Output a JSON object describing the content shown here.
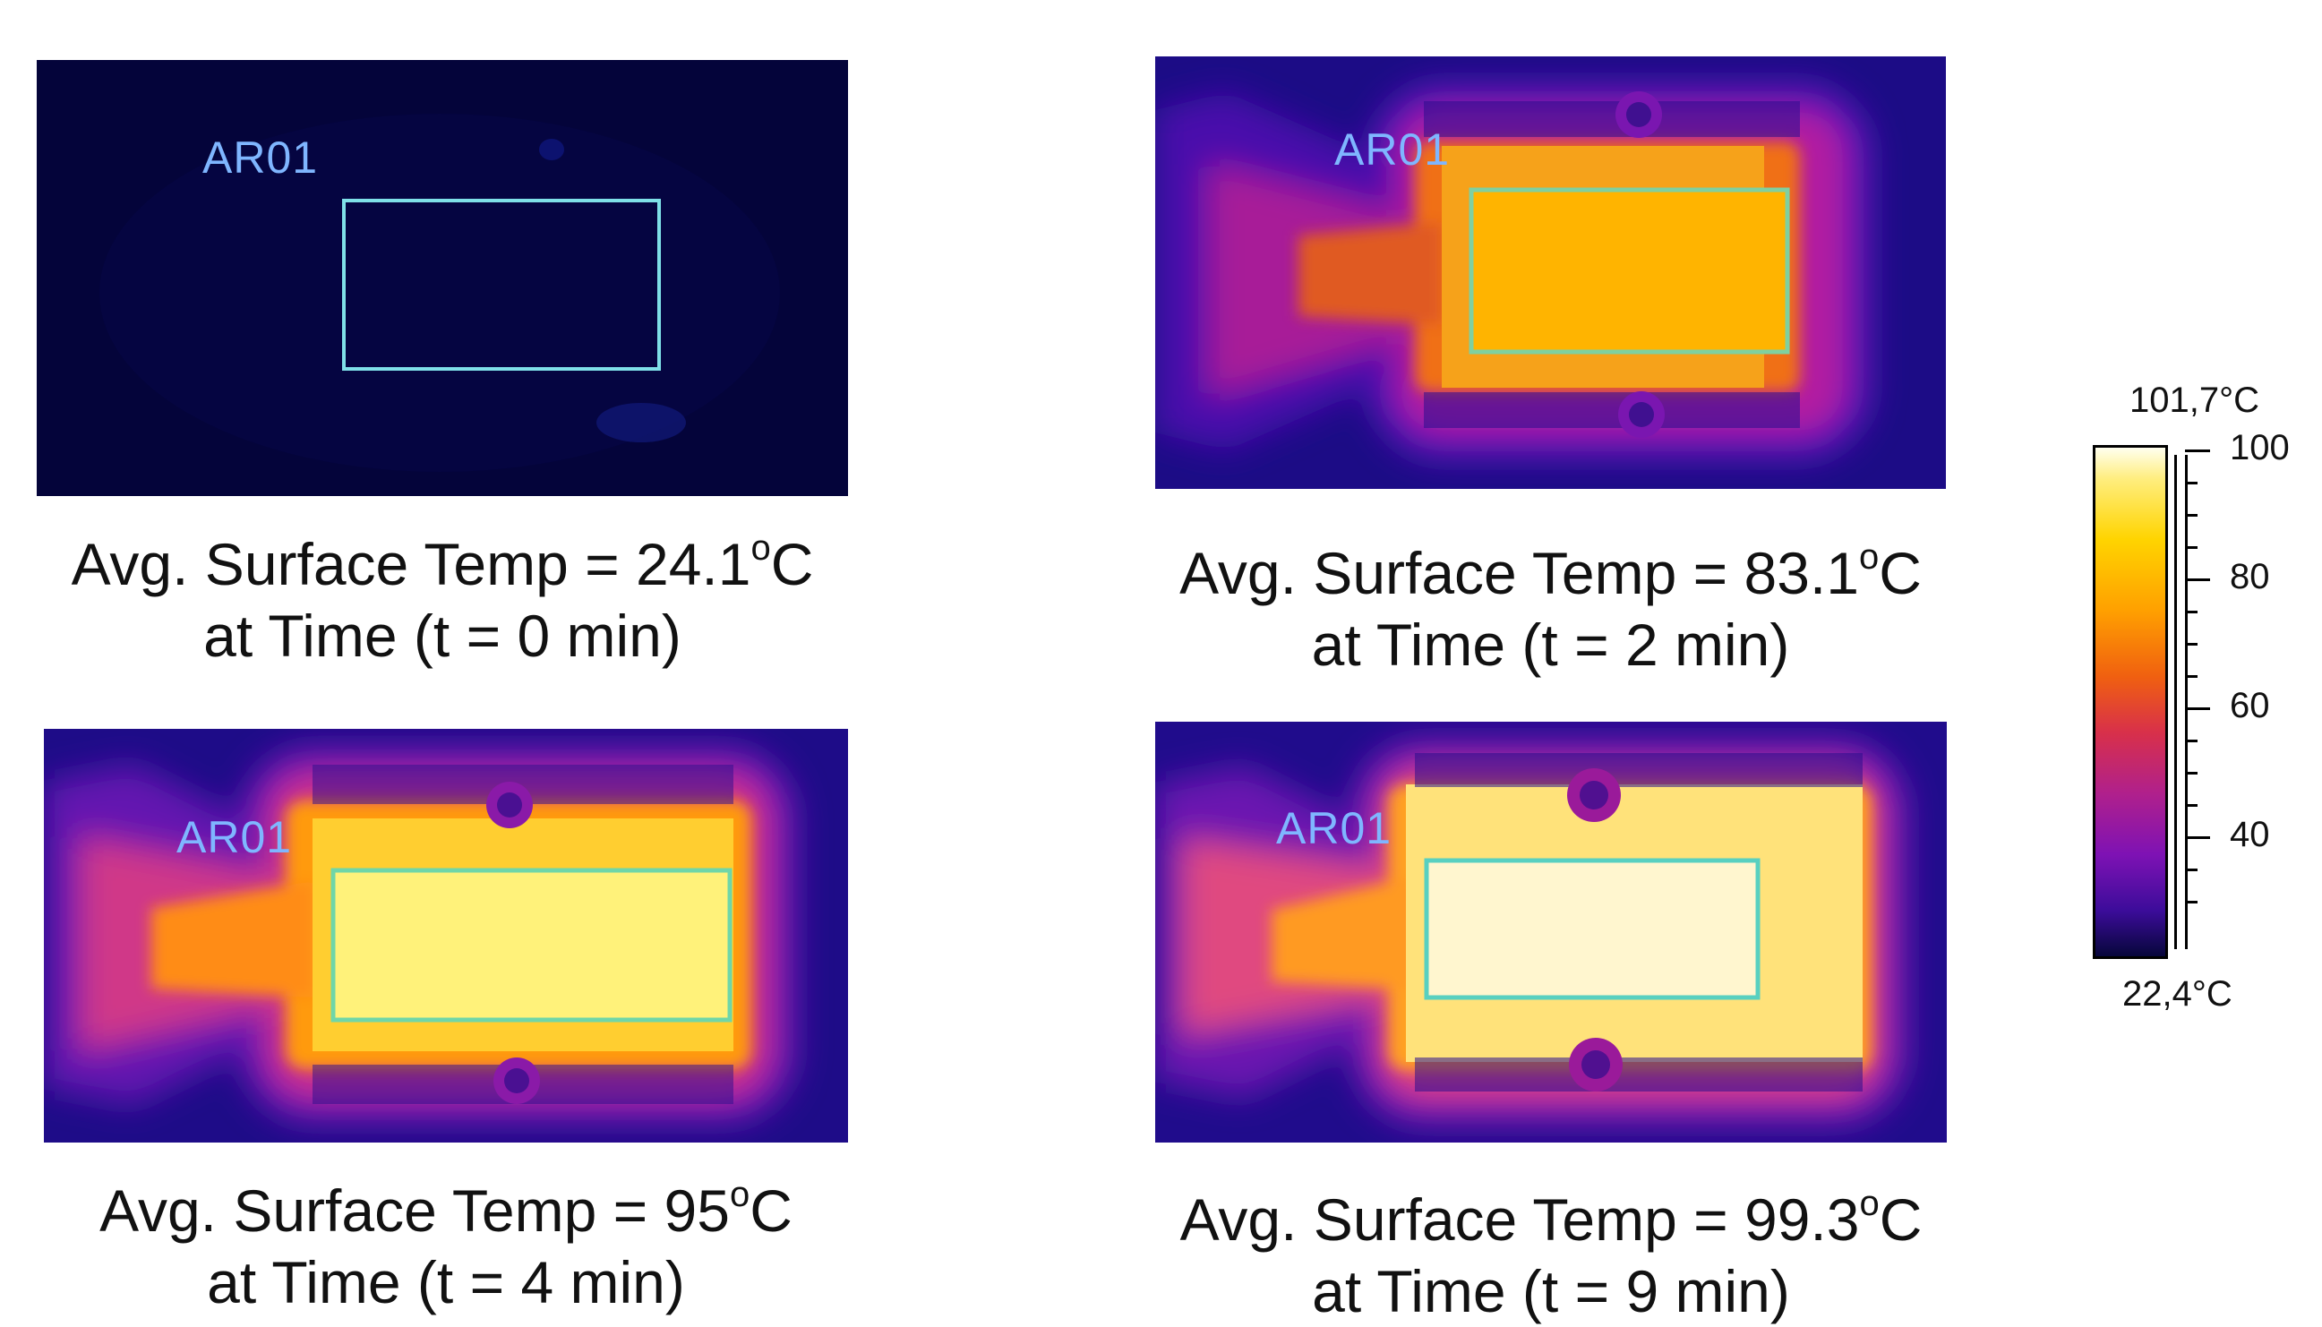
{
  "panels": [
    {
      "tag": "AR01",
      "caption_prefix": "Avg. Surface Temp = ",
      "value": "24.1",
      "unit_sup": "o",
      "unit": "C",
      "time": "at Time (t = 0 min)"
    },
    {
      "tag": "AR01",
      "caption_prefix": "Avg. Surface Temp = ",
      "value": "83.1",
      "unit_sup": "o",
      "unit": "C",
      "time": "at Time (t = 2 min)"
    },
    {
      "tag": "AR01",
      "caption_prefix": "Avg. Surface Temp = ",
      "value": "95",
      "unit_sup": "o",
      "unit": "C",
      "time": "at Time (t = 4 min)"
    },
    {
      "tag": "AR01",
      "caption_prefix": "Avg. Surface Temp = ",
      "value": "99.3",
      "unit_sup": "o",
      "unit": "C",
      "time": "at Time (t = 9 min)"
    }
  ],
  "scale": {
    "max_label": "101,7°C",
    "min_label": "22,4°C",
    "ticks": [
      "100",
      "80",
      "60",
      "40"
    ]
  },
  "colors": {
    "background_cold": "#04043a",
    "roi_box": "#7fe0e8",
    "hot_core_2min": "#ffb400",
    "hot_core_4min": "#fff27a",
    "hot_core_9min": "#fff6cf"
  }
}
